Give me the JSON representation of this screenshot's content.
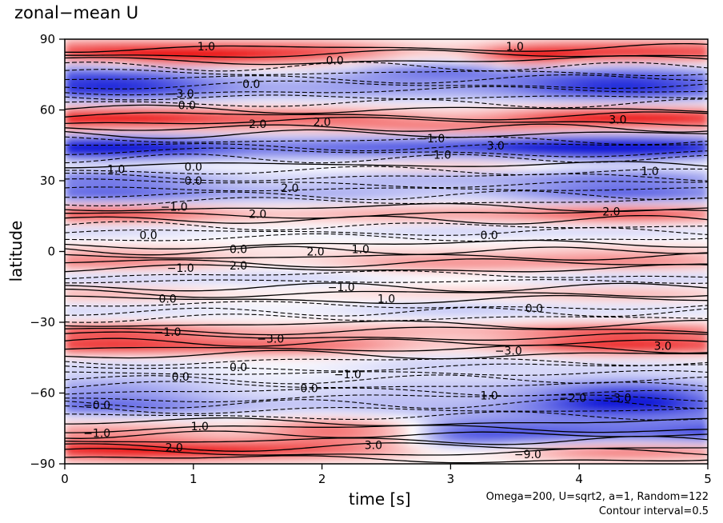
{
  "chart_data": {
    "type": "heatmap",
    "title": "zonal−mean U",
    "xlabel": "time [s]",
    "ylabel": "latitude",
    "xlim": [
      0,
      5
    ],
    "ylim": [
      -90,
      90
    ],
    "x_ticks": [
      "0",
      "1",
      "2",
      "3",
      "4",
      "5"
    ],
    "y_ticks": [
      "−90",
      "−60",
      "−30",
      "0",
      "30",
      "60",
      "90"
    ],
    "contour_interval": 0.5,
    "contour_labels": [
      {
        "text": "1.0",
        "x": 1.1,
        "y": 87
      },
      {
        "text": "0.0",
        "x": 2.1,
        "y": 81
      },
      {
        "text": "1.0",
        "x": 3.5,
        "y": 87
      },
      {
        "text": "−3.0",
        "x": 0.9,
        "y": 67
      },
      {
        "text": "0.0",
        "x": 1.45,
        "y": 71
      },
      {
        "text": "3.0",
        "x": 4.3,
        "y": 56
      },
      {
        "text": "2.0",
        "x": 1.5,
        "y": 54
      },
      {
        "text": "2.0",
        "x": 2.0,
        "y": 55
      },
      {
        "text": "0.0",
        "x": 0.95,
        "y": 62
      },
      {
        "text": "−1.0",
        "x": 2.85,
        "y": 48
      },
      {
        "text": "3.0",
        "x": 3.35,
        "y": 45
      },
      {
        "text": "1.0",
        "x": 0.4,
        "y": 35
      },
      {
        "text": "0.0",
        "x": 1.0,
        "y": 36
      },
      {
        "text": "−1.0",
        "x": 2.9,
        "y": 41
      },
      {
        "text": "1.0",
        "x": 4.55,
        "y": 34
      },
      {
        "text": "0.0",
        "x": 1.0,
        "y": 30
      },
      {
        "text": "2.0",
        "x": 1.75,
        "y": 27
      },
      {
        "text": "−1.0",
        "x": 0.85,
        "y": 19
      },
      {
        "text": "2.0",
        "x": 1.5,
        "y": 16
      },
      {
        "text": "2.0",
        "x": 4.25,
        "y": 17
      },
      {
        "text": "0.0",
        "x": 0.65,
        "y": 7
      },
      {
        "text": "0.0",
        "x": 3.3,
        "y": 7
      },
      {
        "text": "0.0",
        "x": 1.35,
        "y": 1
      },
      {
        "text": "2.0",
        "x": 1.35,
        "y": -6
      },
      {
        "text": "2.0",
        "x": 1.95,
        "y": 0
      },
      {
        "text": "1.0",
        "x": 2.3,
        "y": 1
      },
      {
        "text": "−1.0",
        "x": 0.9,
        "y": -7
      },
      {
        "text": "−1.0",
        "x": 2.15,
        "y": -15
      },
      {
        "text": "1.0",
        "x": 2.5,
        "y": -20
      },
      {
        "text": "0.0",
        "x": 0.8,
        "y": -20
      },
      {
        "text": "0.0",
        "x": 3.65,
        "y": -24
      },
      {
        "text": "−1.0",
        "x": 0.8,
        "y": -34
      },
      {
        "text": "−3.0",
        "x": 1.6,
        "y": -37
      },
      {
        "text": "−3.0",
        "x": 3.45,
        "y": -42
      },
      {
        "text": "3.0",
        "x": 4.65,
        "y": -40
      },
      {
        "text": "0.0",
        "x": 1.35,
        "y": -49
      },
      {
        "text": "0.0",
        "x": 0.9,
        "y": -53
      },
      {
        "text": "−1.0",
        "x": 2.2,
        "y": -52
      },
      {
        "text": "0.0",
        "x": 1.9,
        "y": -58
      },
      {
        "text": "1.0",
        "x": 3.3,
        "y": -61
      },
      {
        "text": "−2.0",
        "x": 3.95,
        "y": -62
      },
      {
        "text": "−3.0",
        "x": 4.3,
        "y": -62
      },
      {
        "text": "−0.0",
        "x": 0.25,
        "y": -65
      },
      {
        "text": "1.0",
        "x": 1.05,
        "y": -74
      },
      {
        "text": "−1.0",
        "x": 0.25,
        "y": -77
      },
      {
        "text": "3.0",
        "x": 2.4,
        "y": -82
      },
      {
        "text": "−9.0",
        "x": 3.6,
        "y": -86
      },
      {
        "text": "2.0",
        "x": 0.85,
        "y": -83
      }
    ]
  },
  "annotations": {
    "params": "Omega=200, U=sqrt2, a=1, Random=122",
    "contour": "Contour interval=0.5"
  }
}
